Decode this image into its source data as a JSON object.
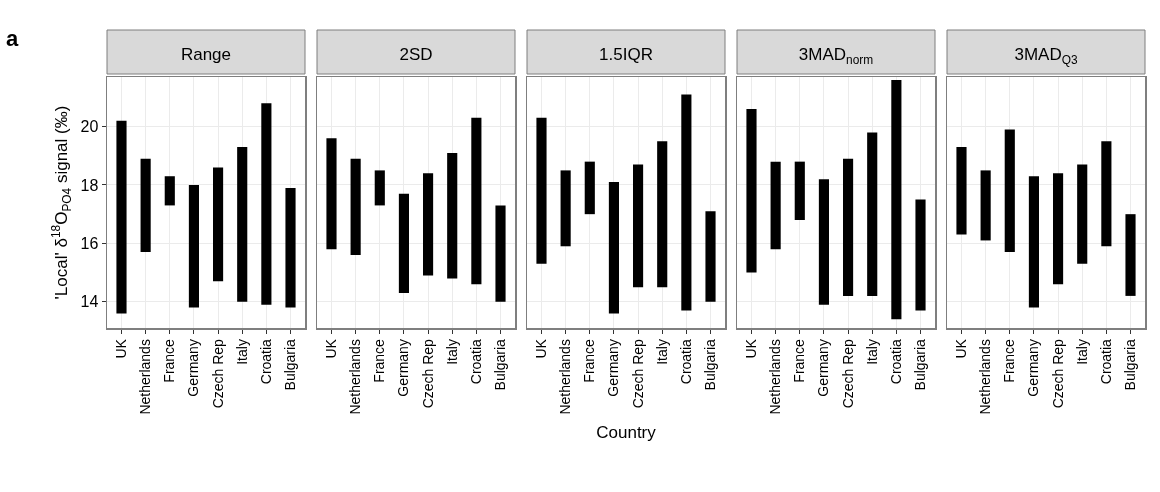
{
  "chart_data": [
    {
      "type": "bar",
      "title": "Range",
      "ylabel": "'Local' δ$^{18}$O$_{PO4}$ signal (‰)",
      "annotations": [
        "a"
      ],
      "categories": [
        "UK",
        "Netherlands",
        "France",
        "Germany",
        "Czech Rep",
        "Italy",
        "Croatia",
        "Bulgaria"
      ],
      "base": [
        13.6,
        15.7,
        17.3,
        13.8,
        14.7,
        14.0,
        13.9,
        13.8
      ],
      "values": [
        6.6,
        3.2,
        1.0,
        4.2,
        3.9,
        5.3,
        6.9,
        4.1
      ],
      "color": "#000000",
      "ylim": [
        13.1,
        21.7
      ],
      "yticks": [
        14,
        16,
        18,
        20
      ],
      "grid": true
    },
    {
      "type": "bar",
      "title": "2SD",
      "categories": [
        "UK",
        "Netherlands",
        "France",
        "Germany",
        "Czech Rep",
        "Italy",
        "Croatia",
        "Bulgaria"
      ],
      "base": [
        15.8,
        15.6,
        17.3,
        14.3,
        14.9,
        14.8,
        14.6,
        14.0
      ],
      "values": [
        3.8,
        3.3,
        1.2,
        3.4,
        3.5,
        4.3,
        5.7,
        3.3
      ],
      "color": "#000000",
      "ylim": [
        13.1,
        21.7
      ],
      "yticks": [
        14,
        16,
        18,
        20
      ],
      "grid": true,
      "tick_labels": "x"
    },
    {
      "type": "bar",
      "title": "1.5IQR",
      "xlabel": "Country",
      "categories": [
        "UK",
        "Netherlands",
        "France",
        "Germany",
        "Czech Rep",
        "Italy",
        "Croatia",
        "Bulgaria"
      ],
      "base": [
        15.3,
        15.9,
        17.0,
        13.6,
        14.5,
        14.5,
        13.7,
        14.0
      ],
      "values": [
        5.0,
        2.6,
        1.8,
        4.5,
        4.2,
        5.0,
        7.4,
        3.1
      ],
      "color": "#000000",
      "ylim": [
        13.1,
        21.7
      ],
      "yticks": [
        14,
        16,
        18,
        20
      ],
      "grid": true,
      "tick_labels": "x"
    },
    {
      "type": "bar",
      "title": "3MAD$_{norm}$",
      "categories": [
        "UK",
        "Netherlands",
        "France",
        "Germany",
        "Czech Rep",
        "Italy",
        "Croatia",
        "Bulgaria"
      ],
      "base": [
        15.0,
        15.8,
        16.8,
        13.9,
        14.2,
        14.2,
        13.4,
        13.7
      ],
      "values": [
        5.6,
        3.0,
        2.0,
        4.3,
        4.7,
        5.6,
        8.2,
        3.8
      ],
      "color": "#000000",
      "ylim": [
        13.1,
        21.7
      ],
      "yticks": [
        14,
        16,
        18,
        20
      ],
      "grid": true,
      "tick_labels": "x"
    },
    {
      "type": "bar",
      "title": "3MAD$_{Q3}$",
      "categories": [
        "UK",
        "Netherlands",
        "France",
        "Germany",
        "Czech Rep",
        "Italy",
        "Croatia",
        "Bulgaria"
      ],
      "base": [
        16.3,
        16.1,
        15.7,
        13.8,
        14.6,
        15.3,
        15.9,
        14.2
      ],
      "values": [
        3.0,
        2.4,
        4.2,
        4.5,
        3.8,
        3.4,
        3.6,
        2.8
      ],
      "color": "#000000",
      "ylim": [
        13.1,
        21.7
      ],
      "yticks": [
        14,
        16,
        18,
        20
      ],
      "grid": true,
      "tick_labels": "x"
    }
  ]
}
